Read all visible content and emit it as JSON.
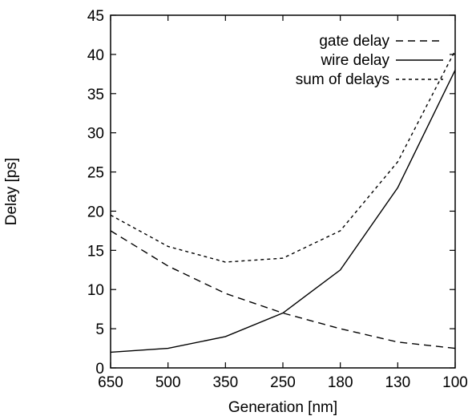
{
  "chart_data": {
    "type": "line",
    "title": "",
    "xlabel": "Generation [nm]",
    "ylabel": "Delay [ps]",
    "categories": [
      "650",
      "500",
      "350",
      "250",
      "180",
      "130",
      "100"
    ],
    "ylim": [
      0,
      45
    ],
    "yticks": [
      0,
      5,
      10,
      15,
      20,
      25,
      30,
      35,
      40,
      45
    ],
    "grid": false,
    "legend_position": "top-right",
    "series": [
      {
        "name": "gate delay",
        "style": "long-dash",
        "color": "#000000",
        "values": [
          17.5,
          13,
          9.5,
          7,
          5,
          3.3,
          2.5
        ]
      },
      {
        "name": "wire delay",
        "style": "solid",
        "color": "#000000",
        "values": [
          2,
          2.5,
          4,
          7,
          12.5,
          23,
          38
        ]
      },
      {
        "name": "sum of delays",
        "style": "short-dash",
        "color": "#000000",
        "values": [
          19.5,
          15.5,
          13.5,
          14,
          17.5,
          26.3,
          40.5
        ]
      }
    ]
  }
}
